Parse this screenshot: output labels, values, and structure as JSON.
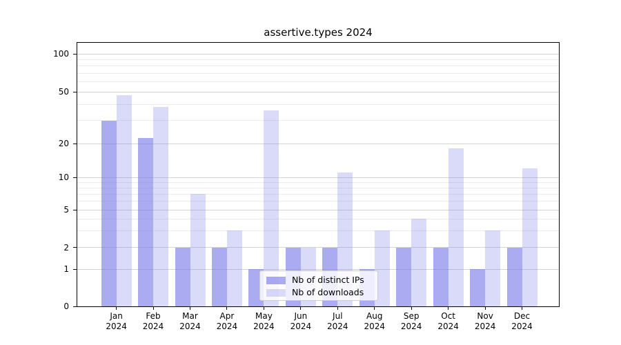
{
  "chart_data": {
    "type": "bar",
    "title": "assertive.types 2024",
    "categories": [
      "Jan",
      "Feb",
      "Mar",
      "Apr",
      "May",
      "Jun",
      "Jul",
      "Aug",
      "Sep",
      "Oct",
      "Nov",
      "Dec"
    ],
    "x_tick_year": "2024",
    "series": [
      {
        "name": "Nb of distinct IPs",
        "color": "#7878ea",
        "opacity": 0.62,
        "values": [
          30,
          22,
          2,
          2,
          1,
          2,
          2,
          1,
          2,
          2,
          1,
          2
        ]
      },
      {
        "name": "Nb of downloads",
        "color": "#7878ea",
        "opacity": 0.27,
        "values": [
          47,
          38,
          7,
          3,
          36,
          2,
          11,
          3,
          4,
          18,
          3,
          12
        ]
      }
    ],
    "yscale": "symlog",
    "yticks": [
      0,
      1,
      2,
      5,
      10,
      20,
      50,
      100
    ],
    "minor_gridlines": [
      3,
      4,
      6,
      7,
      8,
      9,
      30,
      40,
      60,
      70,
      80,
      90
    ],
    "ylim": [
      0,
      122
    ],
    "grid": true,
    "legend": {
      "labels": [
        "Nb of distinct IPs",
        "Nb of downloads"
      ],
      "position": "lower center"
    }
  },
  "colors": {
    "distinct_ips_bar": "#a6a6f2",
    "downloads_bar": "#dadaf8",
    "gridline_major": "#d3d3d3",
    "gridline_minor": "#ebebeb",
    "axis": "#000000",
    "text": "#000000"
  }
}
